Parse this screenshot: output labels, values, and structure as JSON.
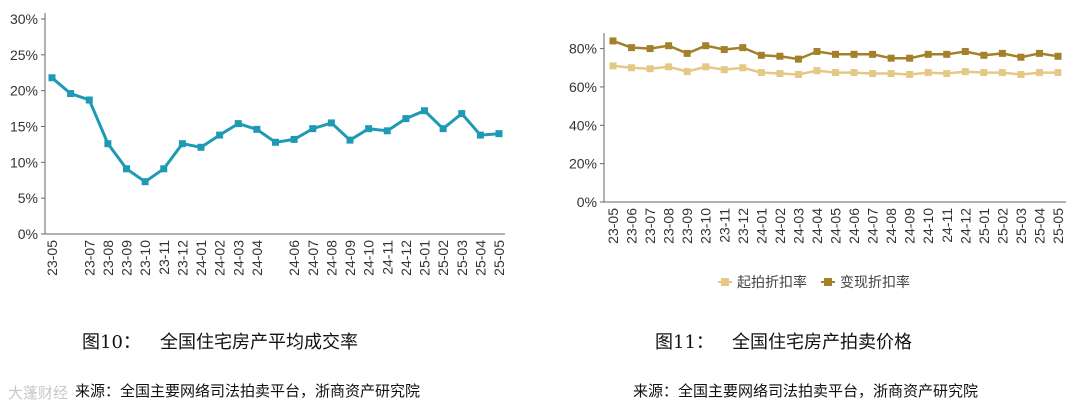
{
  "chart_data": [
    {
      "type": "line",
      "title": "",
      "xlabel": "",
      "ylabel": "",
      "categories": [
        "23-05",
        "23-06",
        "23-07",
        "23-08",
        "23-09",
        "23-10",
        "23-11",
        "23-12",
        "24-01",
        "24-02",
        "24-03",
        "24-04",
        "24-05",
        "24-06",
        "24-07",
        "24-08",
        "24-09",
        "24-10",
        "24-11",
        "24-12",
        "25-01",
        "25-02",
        "25-03",
        "25-04",
        "25-05"
      ],
      "x_tick_labels": [
        "23-05",
        "23-07",
        "23-08",
        "23-09",
        "23-10",
        "23-11",
        "23-12",
        "24-01",
        "24-02",
        "24-03",
        "24-04",
        "24-06",
        "24-07",
        "24-08",
        "24-09",
        "24-10",
        "24-11",
        "24-12",
        "25-01",
        "25-02",
        "25-03",
        "25-04",
        "25-05"
      ],
      "series": [
        {
          "values": [
            21.8,
            19.6,
            18.7,
            12.6,
            9.1,
            7.3,
            9.1,
            12.6,
            12.1,
            13.8,
            15.4,
            14.6,
            12.8,
            13.2,
            14.7,
            15.5,
            13.1,
            14.7,
            14.4,
            16.1,
            17.2,
            14.7,
            16.8,
            13.8,
            14.0
          ],
          "color": "#1e9ab4"
        }
      ],
      "ylim": [
        0,
        0.3
      ],
      "y_ticks": [
        "0%",
        "5%",
        "10%",
        "15%",
        "20%",
        "25%",
        "30%"
      ],
      "grid": false,
      "marker": "square"
    },
    {
      "type": "line",
      "title": "",
      "xlabel": "",
      "ylabel": "",
      "categories": [
        "23-05",
        "23-06",
        "23-07",
        "23-08",
        "23-09",
        "23-10",
        "23-11",
        "23-12",
        "24-01",
        "24-02",
        "24-03",
        "24-04",
        "24-05",
        "24-06",
        "24-07",
        "24-08",
        "24-09",
        "24-10",
        "24-11",
        "24-12",
        "25-01",
        "25-02",
        "25-03",
        "25-04",
        "25-05"
      ],
      "x_tick_labels": [
        "23-05",
        "23-06",
        "23-07",
        "23-08",
        "23-09",
        "23-10",
        "23-11",
        "23-12",
        "24-01",
        "24-02",
        "24-03",
        "24-04",
        "24-05",
        "24-06",
        "24-07",
        "24-08",
        "24-09",
        "24-10",
        "24-11",
        "24-12",
        "25-01",
        "25-02",
        "25-03",
        "25-04",
        "25-05"
      ],
      "series": [
        {
          "name": "起拍折扣率",
          "color": "#e3c984",
          "values": [
            71,
            70,
            69.5,
            70.5,
            68,
            70.5,
            69,
            70,
            67.5,
            67,
            66.5,
            68.5,
            67.5,
            67.5,
            67,
            67,
            66.5,
            67.5,
            67,
            68,
            67.5,
            67.5,
            66.5,
            67.5,
            67.5
          ]
        },
        {
          "name": "变现折扣率",
          "color": "#a2812a",
          "values": [
            84,
            80.5,
            80,
            81.5,
            77.5,
            81.5,
            79.5,
            80.5,
            76.5,
            76,
            74.5,
            78.5,
            77,
            77,
            77,
            75,
            75,
            77,
            77,
            78.5,
            76.5,
            77.5,
            75.5,
            77.5,
            76
          ]
        }
      ],
      "ylim": [
        0,
        0.85
      ],
      "y_ticks": [
        "0%",
        "20%",
        "40%",
        "60%",
        "80%"
      ],
      "legend": "bottom-center",
      "grid": false,
      "marker": "square"
    }
  ],
  "captions": {
    "left_number": "图10：",
    "left_title": "全国住宅房产平均成交率",
    "right_number": "图11：",
    "right_title": "全国住宅房产拍卖价格"
  },
  "source_left": "来源：全国主要网络司法拍卖平台，浙商资产研究院",
  "source_right": "来源：全国主要网络司法拍卖平台，浙商资产研究院",
  "watermark": "大蓬财经"
}
